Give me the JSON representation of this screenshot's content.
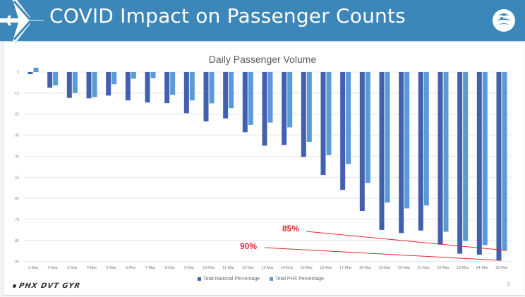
{
  "header": {
    "title": "COVID Impact on Passenger Counts",
    "left_icon": "airplane-icon",
    "right_icon": "phoenix-logo-icon",
    "color": "#3b87b9"
  },
  "footer": {
    "logo_text": "PHX DVT GYR",
    "page_number": "5"
  },
  "chart_data": {
    "type": "bar",
    "title": "Daily Passenger Volume",
    "xlabel": "",
    "ylabel": "",
    "ylim": [
      -90,
      0
    ],
    "yticks": [
      0,
      -10,
      -20,
      -30,
      -40,
      -50,
      -60,
      -70,
      -80,
      -90
    ],
    "ytick_labels": [
      "0",
      "-10",
      "-20",
      "-30",
      "-40",
      "-50",
      "-60",
      "-70",
      "-80",
      "-90"
    ],
    "grid": true,
    "legend_position": "bottom",
    "categories": [
      "1-Mar",
      "2-Mar",
      "3-Mar",
      "4-Mar",
      "5-Mar",
      "6-Mar",
      "7-Mar",
      "8-Mar",
      "9-Mar",
      "10-Mar",
      "11-Mar",
      "12-Mar",
      "13-Mar",
      "14-Mar",
      "15-Mar",
      "16-Mar",
      "17-Mar",
      "18-Mar",
      "19-Mar",
      "20-Mar",
      "21-Mar",
      "22-Mar",
      "23-Mar",
      "24-Mar",
      "25-Mar"
    ],
    "series": [
      {
        "name": "Total National Percentage",
        "color": "#4161b0",
        "values": [
          -1,
          -7.5,
          -12.3,
          -12.5,
          -11.2,
          -13.5,
          -14.5,
          -14.8,
          -19.6,
          -23.5,
          -22.1,
          -28.6,
          -35,
          -34.7,
          -40.4,
          -48.9,
          -56,
          -66,
          -75,
          -76.5,
          -75.3,
          -82,
          -86.3,
          -86.8,
          -89.5
        ]
      },
      {
        "name": "Total PHX Percentage",
        "color": "#5b9bd5",
        "values": [
          2,
          -6.4,
          -10,
          -12,
          -5.8,
          -3.2,
          -3,
          -10.9,
          -13.5,
          -14.9,
          -17.2,
          -25.1,
          -24,
          -26.3,
          -33.2,
          -39.5,
          -43.7,
          -52.7,
          -62,
          -64.8,
          -63.4,
          -75.9,
          -80.3,
          -82.2,
          -84.8
        ]
      }
    ],
    "annotations": [
      {
        "text": "85%",
        "color": "#e0282e",
        "points_to": {
          "series": "Total PHX Percentage",
          "category": "25-Mar"
        }
      },
      {
        "text": "90%",
        "color": "#e0282e",
        "points_to": {
          "series": "Total National Percentage",
          "category": "25-Mar"
        }
      }
    ]
  }
}
